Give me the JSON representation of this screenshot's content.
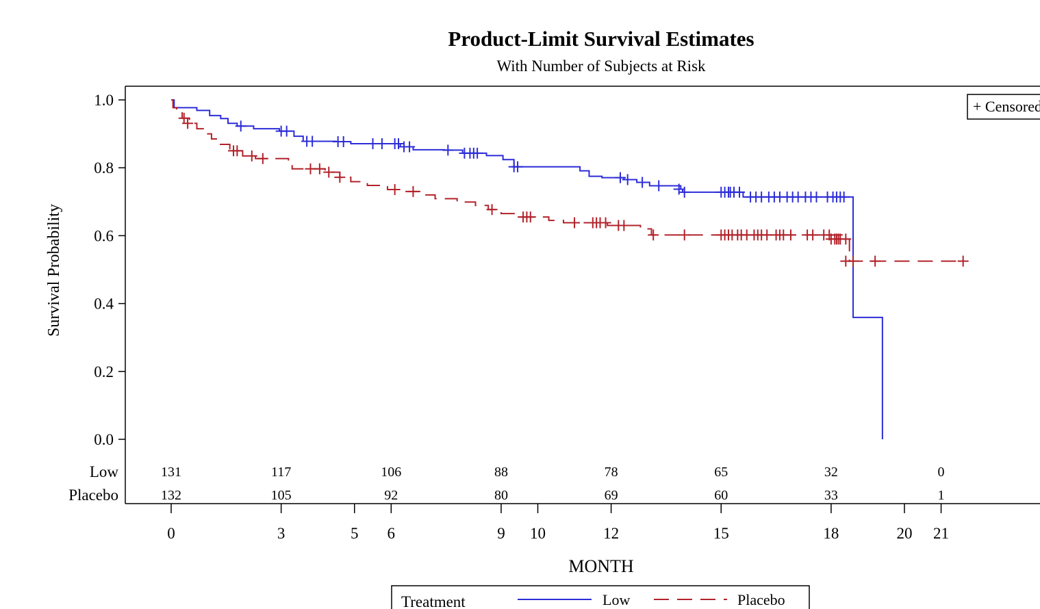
{
  "chart_data": {
    "type": "line",
    "title": "Product-Limit Survival Estimates",
    "subtitle": "With Number of Subjects at Risk",
    "xlabel": "MONTH",
    "ylabel": "Survival Probability",
    "xlim": [
      -1.2,
      23.9
    ],
    "ylim": [
      0.0,
      1.0
    ],
    "x_ticks": [
      0,
      3,
      5,
      6,
      9,
      10,
      12,
      15,
      18,
      20,
      21
    ],
    "y_ticks": [
      "0.0",
      "0.2",
      "0.4",
      "0.6",
      "0.8",
      "1.0"
    ],
    "grid": false,
    "censored_legend": "+ Censored",
    "legend": {
      "title": "Treatment",
      "placement": "bottom",
      "entries": [
        "Low",
        "Placebo"
      ]
    },
    "at_risk": {
      "times": [
        0,
        3,
        6,
        9,
        12,
        15,
        18,
        21
      ],
      "rows": [
        {
          "label": "Low",
          "values": [
            "131",
            "117",
            "106",
            "88",
            "78",
            "65",
            "32",
            "0"
          ]
        },
        {
          "label": "Placebo",
          "values": [
            "132",
            "105",
            "92",
            "80",
            "69",
            "60",
            "33",
            "1"
          ]
        }
      ]
    },
    "series": [
      {
        "name": "Low",
        "color": "#2c2cd8",
        "dash": "solid",
        "steps": [
          [
            0,
            1.0
          ],
          [
            0.08,
            0.977
          ],
          [
            0.7,
            0.969
          ],
          [
            1.05,
            0.954
          ],
          [
            1.35,
            0.945
          ],
          [
            1.55,
            0.931
          ],
          [
            1.8,
            0.923
          ],
          [
            2.25,
            0.915
          ],
          [
            2.95,
            0.908
          ],
          [
            3.35,
            0.893
          ],
          [
            3.6,
            0.878
          ],
          [
            4.5,
            0.877
          ],
          [
            4.9,
            0.871
          ],
          [
            6.25,
            0.862
          ],
          [
            6.6,
            0.853
          ],
          [
            7.45,
            0.852
          ],
          [
            7.95,
            0.843
          ],
          [
            8.6,
            0.836
          ],
          [
            9.05,
            0.824
          ],
          [
            9.35,
            0.803
          ],
          [
            11.15,
            0.791
          ],
          [
            11.4,
            0.775
          ],
          [
            11.75,
            0.771
          ],
          [
            12.35,
            0.765
          ],
          [
            12.7,
            0.757
          ],
          [
            13.05,
            0.747
          ],
          [
            13.9,
            0.737
          ],
          [
            13.95,
            0.728
          ],
          [
            15.6,
            0.714
          ],
          [
            18.6,
            0.359
          ],
          [
            19.4,
            0.0
          ]
        ],
        "censored": [
          [
            1.9,
            0.923
          ],
          [
            3.0,
            0.908
          ],
          [
            3.15,
            0.908
          ],
          [
            3.7,
            0.878
          ],
          [
            3.85,
            0.878
          ],
          [
            4.55,
            0.877
          ],
          [
            4.7,
            0.877
          ],
          [
            5.5,
            0.871
          ],
          [
            5.75,
            0.871
          ],
          [
            6.1,
            0.871
          ],
          [
            6.2,
            0.871
          ],
          [
            6.35,
            0.862
          ],
          [
            6.5,
            0.862
          ],
          [
            7.55,
            0.852
          ],
          [
            8.0,
            0.843
          ],
          [
            8.15,
            0.843
          ],
          [
            8.25,
            0.843
          ],
          [
            8.35,
            0.843
          ],
          [
            9.35,
            0.803
          ],
          [
            9.45,
            0.803
          ],
          [
            12.25,
            0.771
          ],
          [
            12.45,
            0.765
          ],
          [
            12.85,
            0.757
          ],
          [
            13.3,
            0.747
          ],
          [
            13.85,
            0.737
          ],
          [
            14.0,
            0.728
          ],
          [
            15.0,
            0.728
          ],
          [
            15.1,
            0.728
          ],
          [
            15.2,
            0.728
          ],
          [
            15.25,
            0.728
          ],
          [
            15.35,
            0.728
          ],
          [
            15.5,
            0.728
          ],
          [
            15.8,
            0.714
          ],
          [
            15.95,
            0.714
          ],
          [
            16.1,
            0.714
          ],
          [
            16.3,
            0.714
          ],
          [
            16.45,
            0.714
          ],
          [
            16.6,
            0.714
          ],
          [
            16.8,
            0.714
          ],
          [
            16.95,
            0.714
          ],
          [
            17.1,
            0.714
          ],
          [
            17.3,
            0.714
          ],
          [
            17.45,
            0.714
          ],
          [
            17.6,
            0.714
          ],
          [
            17.9,
            0.714
          ],
          [
            18.05,
            0.714
          ],
          [
            18.15,
            0.714
          ],
          [
            18.25,
            0.714
          ],
          [
            18.35,
            0.714
          ]
        ]
      },
      {
        "name": "Placebo",
        "color": "#b2222a",
        "dash": "dashed",
        "steps": [
          [
            0,
            1.0
          ],
          [
            0.05,
            0.977
          ],
          [
            0.15,
            0.962
          ],
          [
            0.3,
            0.946
          ],
          [
            0.5,
            0.931
          ],
          [
            0.7,
            0.915
          ],
          [
            0.9,
            0.9
          ],
          [
            1.1,
            0.885
          ],
          [
            1.3,
            0.869
          ],
          [
            1.6,
            0.85
          ],
          [
            1.95,
            0.835
          ],
          [
            2.3,
            0.827
          ],
          [
            3.2,
            0.812
          ],
          [
            3.3,
            0.797
          ],
          [
            4.2,
            0.787
          ],
          [
            4.6,
            0.772
          ],
          [
            4.9,
            0.759
          ],
          [
            5.35,
            0.748
          ],
          [
            5.9,
            0.736
          ],
          [
            6.35,
            0.73
          ],
          [
            6.8,
            0.72
          ],
          [
            7.2,
            0.709
          ],
          [
            7.8,
            0.699
          ],
          [
            8.3,
            0.689
          ],
          [
            8.65,
            0.677
          ],
          [
            9.0,
            0.665
          ],
          [
            9.4,
            0.655
          ],
          [
            10.3,
            0.645
          ],
          [
            10.7,
            0.638
          ],
          [
            11.9,
            0.63
          ],
          [
            12.8,
            0.62
          ],
          [
            13.1,
            0.602
          ],
          [
            18.3,
            0.59
          ],
          [
            18.5,
            0.525
          ]
        ],
        "censored": [
          [
            0.35,
            0.946
          ],
          [
            0.45,
            0.931
          ],
          [
            1.7,
            0.85
          ],
          [
            1.8,
            0.85
          ],
          [
            2.2,
            0.835
          ],
          [
            2.5,
            0.827
          ],
          [
            3.8,
            0.797
          ],
          [
            4.05,
            0.797
          ],
          [
            4.3,
            0.787
          ],
          [
            4.6,
            0.772
          ],
          [
            6.1,
            0.736
          ],
          [
            6.6,
            0.73
          ],
          [
            8.75,
            0.677
          ],
          [
            9.6,
            0.655
          ],
          [
            9.7,
            0.655
          ],
          [
            9.8,
            0.655
          ],
          [
            11.0,
            0.638
          ],
          [
            11.5,
            0.638
          ],
          [
            11.6,
            0.638
          ],
          [
            11.7,
            0.638
          ],
          [
            11.85,
            0.638
          ],
          [
            12.2,
            0.63
          ],
          [
            12.35,
            0.63
          ],
          [
            13.15,
            0.602
          ],
          [
            14.0,
            0.602
          ],
          [
            15.0,
            0.602
          ],
          [
            15.1,
            0.602
          ],
          [
            15.2,
            0.602
          ],
          [
            15.3,
            0.602
          ],
          [
            15.45,
            0.602
          ],
          [
            15.55,
            0.602
          ],
          [
            15.7,
            0.602
          ],
          [
            15.9,
            0.602
          ],
          [
            16.0,
            0.602
          ],
          [
            16.1,
            0.602
          ],
          [
            16.25,
            0.602
          ],
          [
            16.5,
            0.602
          ],
          [
            16.6,
            0.602
          ],
          [
            16.7,
            0.602
          ],
          [
            16.9,
            0.602
          ],
          [
            17.35,
            0.602
          ],
          [
            17.5,
            0.602
          ],
          [
            17.8,
            0.602
          ],
          [
            17.95,
            0.602
          ],
          [
            18.0,
            0.59
          ],
          [
            18.1,
            0.59
          ],
          [
            18.15,
            0.59
          ],
          [
            18.2,
            0.59
          ],
          [
            18.25,
            0.59
          ],
          [
            18.4,
            0.59
          ],
          [
            18.4,
            0.525
          ],
          [
            18.6,
            0.525
          ],
          [
            19.2,
            0.525
          ],
          [
            21.6,
            0.525
          ]
        ]
      }
    ]
  }
}
